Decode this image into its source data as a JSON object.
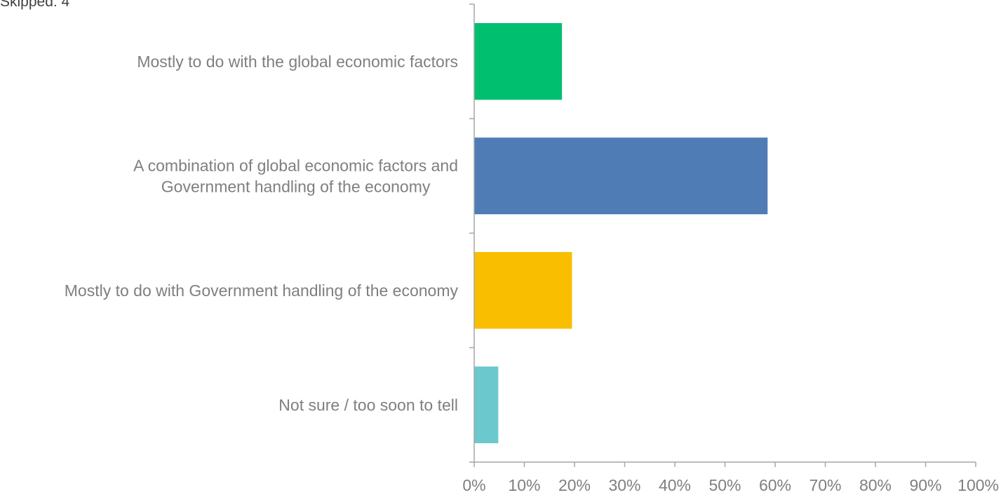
{
  "header": {
    "skipped_text": "Skipped: 4"
  },
  "chart_data": {
    "type": "bar",
    "orientation": "horizontal",
    "categories": [
      [
        "Mostly to do with the global economic factors"
      ],
      [
        "A combination of global economic factors and",
        "Government handling of the economy"
      ],
      [
        "Mostly to do with Government handling of the economy"
      ],
      [
        "Not sure / too soon to tell"
      ]
    ],
    "values": [
      17.5,
      58.5,
      19.5,
      4.8
    ],
    "colors": [
      "#00bf6f",
      "#507cb6",
      "#f9be00",
      "#6bc8cd"
    ],
    "x_ticks": [
      "0%",
      "10%",
      "20%",
      "30%",
      "40%",
      "50%",
      "60%",
      "70%",
      "80%",
      "90%",
      "100%"
    ],
    "xlim": [
      0,
      100
    ],
    "value_format": "percent",
    "grid": false,
    "legend": "none"
  }
}
